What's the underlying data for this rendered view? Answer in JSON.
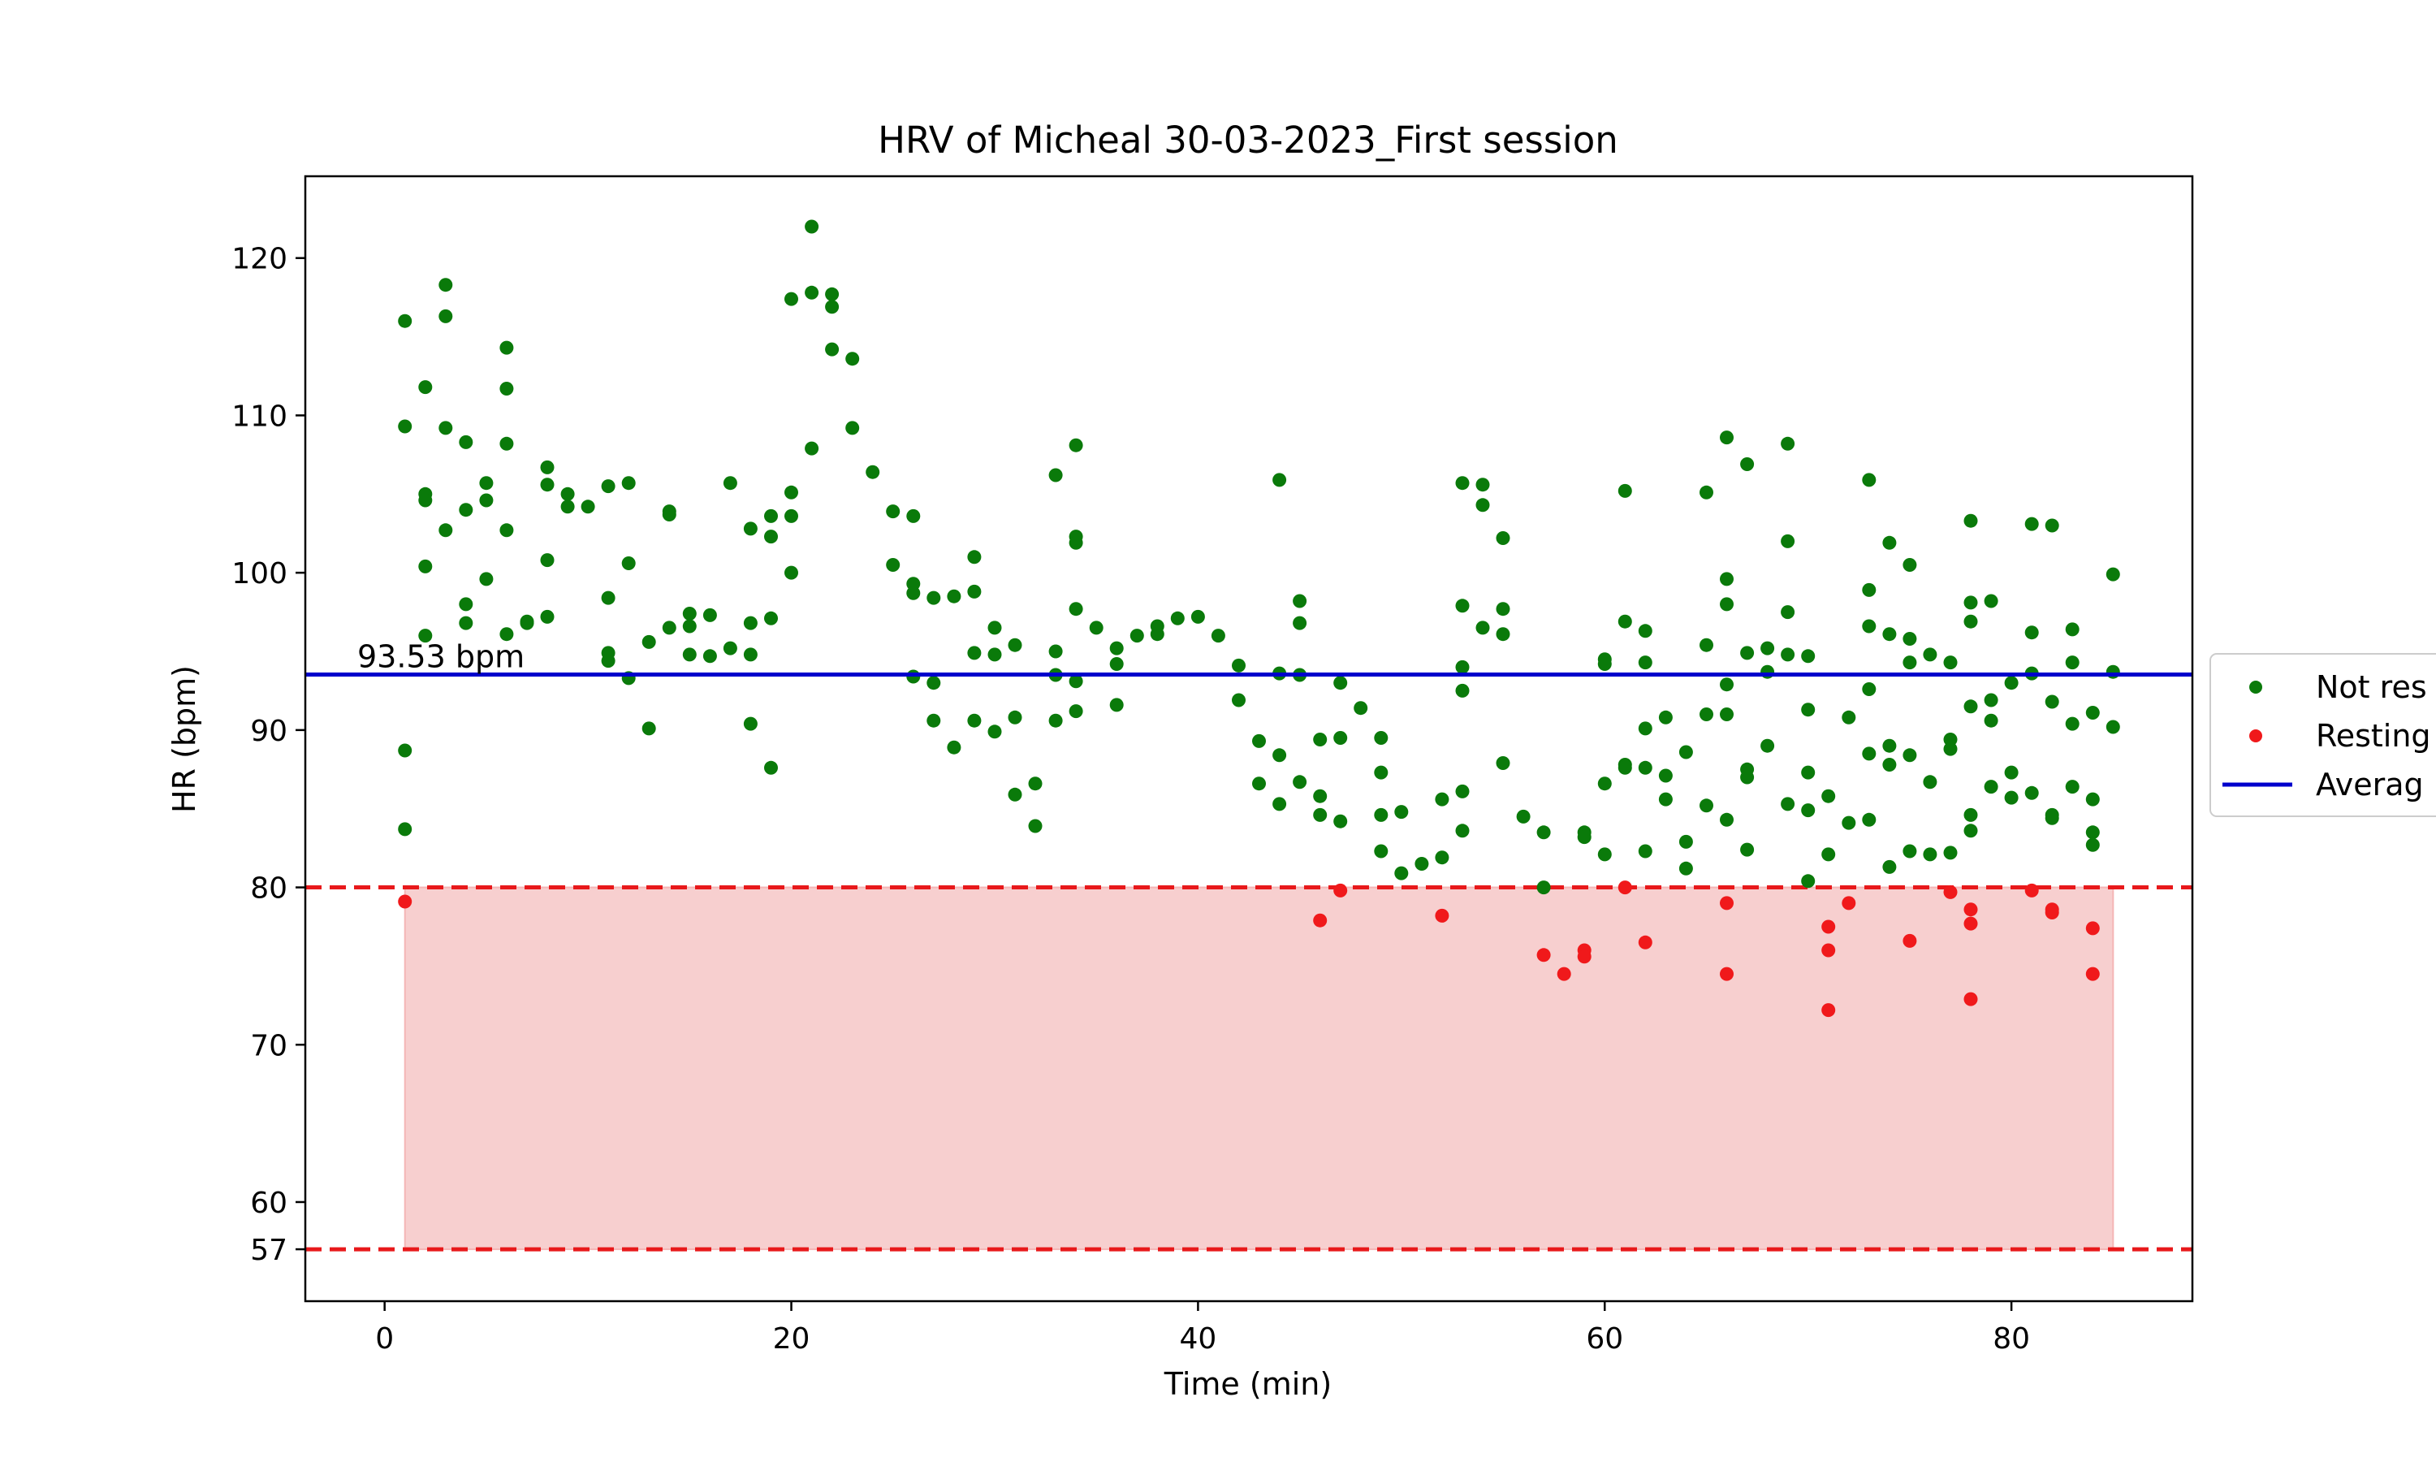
{
  "chart_data": {
    "type": "scatter",
    "title": "HRV of Micheal 30-03-2023_First session",
    "xlabel": "Time (min)",
    "ylabel": "HR (bpm)",
    "xlim": [
      -3.9,
      88.9
    ],
    "ylim": [
      53.7,
      125.2
    ],
    "xticks": [
      0,
      20,
      40,
      60,
      80
    ],
    "yticks": [
      57,
      60,
      70,
      80,
      90,
      100,
      110,
      120
    ],
    "grid": false,
    "legend_position": "right-outside",
    "average": {
      "value": 93.53,
      "label": "93.53 bpm",
      "color": "#0000cc"
    },
    "resting_band": {
      "lower": 57,
      "upper": 80,
      "x_start": 1,
      "x_end": 85,
      "fill_color": "#f7cfcf",
      "line_color": "#e8191b"
    },
    "series": [
      {
        "name": "Not resting",
        "color": "#0a7a0a",
        "points": [
          [
            1,
            116
          ],
          [
            1,
            109.3
          ],
          [
            1,
            88.7
          ],
          [
            1,
            83.7
          ],
          [
            2,
            111.8
          ],
          [
            2,
            105
          ],
          [
            2,
            104.6
          ],
          [
            2,
            100.4
          ],
          [
            2,
            96
          ],
          [
            3,
            118.3
          ],
          [
            3,
            116.3
          ],
          [
            3,
            109.2
          ],
          [
            3,
            102.7
          ],
          [
            4,
            108.3
          ],
          [
            4,
            104
          ],
          [
            4,
            98
          ],
          [
            4,
            96.8
          ],
          [
            5,
            105.7
          ],
          [
            5,
            104.6
          ],
          [
            5,
            99.6
          ],
          [
            6,
            114.3
          ],
          [
            6,
            111.7
          ],
          [
            6,
            108.2
          ],
          [
            6,
            102.7
          ],
          [
            6,
            96.1
          ],
          [
            7,
            96.8
          ],
          [
            7,
            96.9
          ],
          [
            8,
            106.7
          ],
          [
            8,
            105.6
          ],
          [
            8,
            100.8
          ],
          [
            8,
            97.2
          ],
          [
            9,
            105
          ],
          [
            9,
            104.2
          ],
          [
            10,
            104.2
          ],
          [
            11,
            105.5
          ],
          [
            11,
            98.4
          ],
          [
            11,
            94.9
          ],
          [
            11,
            94.4
          ],
          [
            12,
            105.7
          ],
          [
            12,
            100.6
          ],
          [
            12,
            93.3
          ],
          [
            13,
            95.6
          ],
          [
            13,
            90.1
          ],
          [
            14,
            103.9
          ],
          [
            14,
            103.7
          ],
          [
            14,
            96.5
          ],
          [
            15,
            97.4
          ],
          [
            15,
            96.6
          ],
          [
            15,
            94.8
          ],
          [
            16,
            97.3
          ],
          [
            16,
            94.7
          ],
          [
            17,
            105.7
          ],
          [
            17,
            95.2
          ],
          [
            18,
            102.8
          ],
          [
            18,
            96.8
          ],
          [
            18,
            94.8
          ],
          [
            18,
            90.4
          ],
          [
            19,
            103.6
          ],
          [
            19,
            102.3
          ],
          [
            19,
            97.1
          ],
          [
            19,
            87.6
          ],
          [
            20,
            117.4
          ],
          [
            20,
            105.1
          ],
          [
            20,
            103.6
          ],
          [
            20,
            100
          ],
          [
            21,
            122
          ],
          [
            21,
            117.8
          ],
          [
            21,
            107.9
          ],
          [
            22,
            117.7
          ],
          [
            22,
            116.9
          ],
          [
            22,
            114.2
          ],
          [
            23,
            113.6
          ],
          [
            23,
            109.2
          ],
          [
            24,
            106.4
          ],
          [
            25,
            103.9
          ],
          [
            25,
            100.5
          ],
          [
            26,
            103.6
          ],
          [
            26,
            99.3
          ],
          [
            26,
            98.7
          ],
          [
            26,
            93.4
          ],
          [
            27,
            98.4
          ],
          [
            27,
            93
          ],
          [
            27,
            90.6
          ],
          [
            28,
            98.5
          ],
          [
            28,
            88.9
          ],
          [
            29,
            101
          ],
          [
            29,
            98.8
          ],
          [
            29,
            94.9
          ],
          [
            29,
            90.6
          ],
          [
            30,
            96.5
          ],
          [
            30,
            94.8
          ],
          [
            30,
            89.9
          ],
          [
            31,
            95.4
          ],
          [
            31,
            90.8
          ],
          [
            31,
            85.9
          ],
          [
            32,
            86.6
          ],
          [
            32,
            83.9
          ],
          [
            33,
            106.2
          ],
          [
            33,
            95
          ],
          [
            33,
            93.5
          ],
          [
            33,
            90.6
          ],
          [
            34,
            108.1
          ],
          [
            34,
            102.3
          ],
          [
            34,
            101.9
          ],
          [
            34,
            97.7
          ],
          [
            34,
            93.1
          ],
          [
            34,
            91.2
          ],
          [
            35,
            96.5
          ],
          [
            36,
            95.2
          ],
          [
            36,
            94.2
          ],
          [
            36,
            91.6
          ],
          [
            37,
            96
          ],
          [
            38,
            96.6
          ],
          [
            38,
            96.1
          ],
          [
            39,
            97.1
          ],
          [
            40,
            97.2
          ],
          [
            41,
            96
          ],
          [
            42,
            94.1
          ],
          [
            42,
            91.9
          ],
          [
            43,
            89.3
          ],
          [
            43,
            86.6
          ],
          [
            44,
            105.9
          ],
          [
            44,
            93.6
          ],
          [
            44,
            88.4
          ],
          [
            44,
            85.3
          ],
          [
            45,
            98.2
          ],
          [
            45,
            96.8
          ],
          [
            45,
            93.5
          ],
          [
            45,
            86.7
          ],
          [
            46,
            89.4
          ],
          [
            46,
            85.8
          ],
          [
            46,
            84.6
          ],
          [
            47,
            93
          ],
          [
            47,
            89.5
          ],
          [
            47,
            84.2
          ],
          [
            48,
            91.4
          ],
          [
            49,
            89.5
          ],
          [
            49,
            87.3
          ],
          [
            49,
            84.6
          ],
          [
            49,
            82.3
          ],
          [
            50,
            84.8
          ],
          [
            50,
            80.9
          ],
          [
            51,
            81.5
          ],
          [
            52,
            85.6
          ],
          [
            52,
            81.9
          ],
          [
            53,
            105.7
          ],
          [
            53,
            97.9
          ],
          [
            53,
            94
          ],
          [
            53,
            92.5
          ],
          [
            53,
            86.1
          ],
          [
            53,
            83.6
          ],
          [
            54,
            105.6
          ],
          [
            54,
            104.3
          ],
          [
            54,
            96.5
          ],
          [
            55,
            102.2
          ],
          [
            55,
            97.7
          ],
          [
            55,
            96.1
          ],
          [
            55,
            87.9
          ],
          [
            56,
            84.5
          ],
          [
            57,
            83.5
          ],
          [
            57,
            80
          ],
          [
            59,
            83.5
          ],
          [
            59,
            83.2
          ],
          [
            60,
            94.5
          ],
          [
            60,
            94.2
          ],
          [
            60,
            86.6
          ],
          [
            60,
            82.1
          ],
          [
            61,
            105.2
          ],
          [
            61,
            96.9
          ],
          [
            61,
            87.8
          ],
          [
            61,
            87.6
          ],
          [
            62,
            96.3
          ],
          [
            62,
            94.3
          ],
          [
            62,
            90.1
          ],
          [
            62,
            87.6
          ],
          [
            62,
            82.3
          ],
          [
            63,
            90.8
          ],
          [
            63,
            87.1
          ],
          [
            63,
            85.6
          ],
          [
            64,
            88.6
          ],
          [
            64,
            82.9
          ],
          [
            64,
            81.2
          ],
          [
            65,
            105.1
          ],
          [
            65,
            95.4
          ],
          [
            65,
            91
          ],
          [
            65,
            85.2
          ],
          [
            66,
            108.6
          ],
          [
            66,
            99.6
          ],
          [
            66,
            98
          ],
          [
            66,
            92.9
          ],
          [
            66,
            91
          ],
          [
            66,
            84.3
          ],
          [
            67,
            106.9
          ],
          [
            67,
            94.9
          ],
          [
            67,
            87.5
          ],
          [
            67,
            87
          ],
          [
            67,
            82.4
          ],
          [
            68,
            95.2
          ],
          [
            68,
            93.7
          ],
          [
            68,
            89
          ],
          [
            69,
            108.2
          ],
          [
            69,
            102
          ],
          [
            69,
            97.5
          ],
          [
            69,
            94.8
          ],
          [
            69,
            85.3
          ],
          [
            70,
            94.7
          ],
          [
            70,
            91.3
          ],
          [
            70,
            87.3
          ],
          [
            70,
            84.9
          ],
          [
            70,
            80.4
          ],
          [
            71,
            85.8
          ],
          [
            71,
            82.1
          ],
          [
            72,
            90.8
          ],
          [
            72,
            84.1
          ],
          [
            73,
            105.9
          ],
          [
            73,
            98.9
          ],
          [
            73,
            96.6
          ],
          [
            73,
            92.6
          ],
          [
            73,
            88.5
          ],
          [
            73,
            84.3
          ],
          [
            74,
            101.9
          ],
          [
            74,
            96.1
          ],
          [
            74,
            89
          ],
          [
            74,
            87.8
          ],
          [
            74,
            81.3
          ],
          [
            75,
            100.5
          ],
          [
            75,
            95.8
          ],
          [
            75,
            94.3
          ],
          [
            75,
            88.4
          ],
          [
            75,
            82.3
          ],
          [
            76,
            94.8
          ],
          [
            76,
            86.7
          ],
          [
            76,
            82.1
          ],
          [
            77,
            94.3
          ],
          [
            77,
            89.4
          ],
          [
            77,
            88.8
          ],
          [
            77,
            82.2
          ],
          [
            78,
            103.3
          ],
          [
            78,
            98.1
          ],
          [
            78,
            96.9
          ],
          [
            78,
            91.5
          ],
          [
            78,
            84.6
          ],
          [
            78,
            83.6
          ],
          [
            79,
            98.2
          ],
          [
            79,
            91.9
          ],
          [
            79,
            90.6
          ],
          [
            79,
            86.4
          ],
          [
            80,
            93
          ],
          [
            80,
            87.3
          ],
          [
            80,
            85.7
          ],
          [
            81,
            103.1
          ],
          [
            81,
            96.2
          ],
          [
            81,
            93.6
          ],
          [
            81,
            86
          ],
          [
            82,
            103
          ],
          [
            82,
            91.8
          ],
          [
            82,
            84.6
          ],
          [
            82,
            84.4
          ],
          [
            83,
            96.4
          ],
          [
            83,
            94.3
          ],
          [
            83,
            90.4
          ],
          [
            83,
            86.4
          ],
          [
            84,
            91.1
          ],
          [
            84,
            85.6
          ],
          [
            84,
            83.5
          ],
          [
            84,
            82.7
          ],
          [
            85,
            99.9
          ],
          [
            85,
            93.7
          ],
          [
            85,
            90.2
          ]
        ]
      },
      {
        "name": "Resting",
        "color": "#f0191b",
        "points": [
          [
            1,
            79.1
          ],
          [
            46,
            77.9
          ],
          [
            47,
            79.8
          ],
          [
            52,
            78.2
          ],
          [
            57,
            75.7
          ],
          [
            58,
            74.5
          ],
          [
            59,
            76
          ],
          [
            59,
            75.6
          ],
          [
            61,
            80
          ],
          [
            62,
            76.5
          ],
          [
            66,
            79
          ],
          [
            66,
            74.5
          ],
          [
            71,
            77.5
          ],
          [
            71,
            76
          ],
          [
            71,
            72.2
          ],
          [
            72,
            79
          ],
          [
            75,
            76.6
          ],
          [
            77,
            79.7
          ],
          [
            78,
            78.6
          ],
          [
            78,
            77.7
          ],
          [
            78,
            72.9
          ],
          [
            81,
            79.8
          ],
          [
            82,
            78.6
          ],
          [
            82,
            78.4
          ],
          [
            84,
            77.4
          ],
          [
            84,
            74.5
          ]
        ]
      }
    ],
    "legend": [
      {
        "label": "Not res",
        "marker": "dot",
        "color": "#0a7a0a"
      },
      {
        "label": "Resting",
        "marker": "dot",
        "color": "#f0191b"
      },
      {
        "label": "Averag",
        "marker": "line",
        "color": "#0000cc"
      }
    ]
  }
}
